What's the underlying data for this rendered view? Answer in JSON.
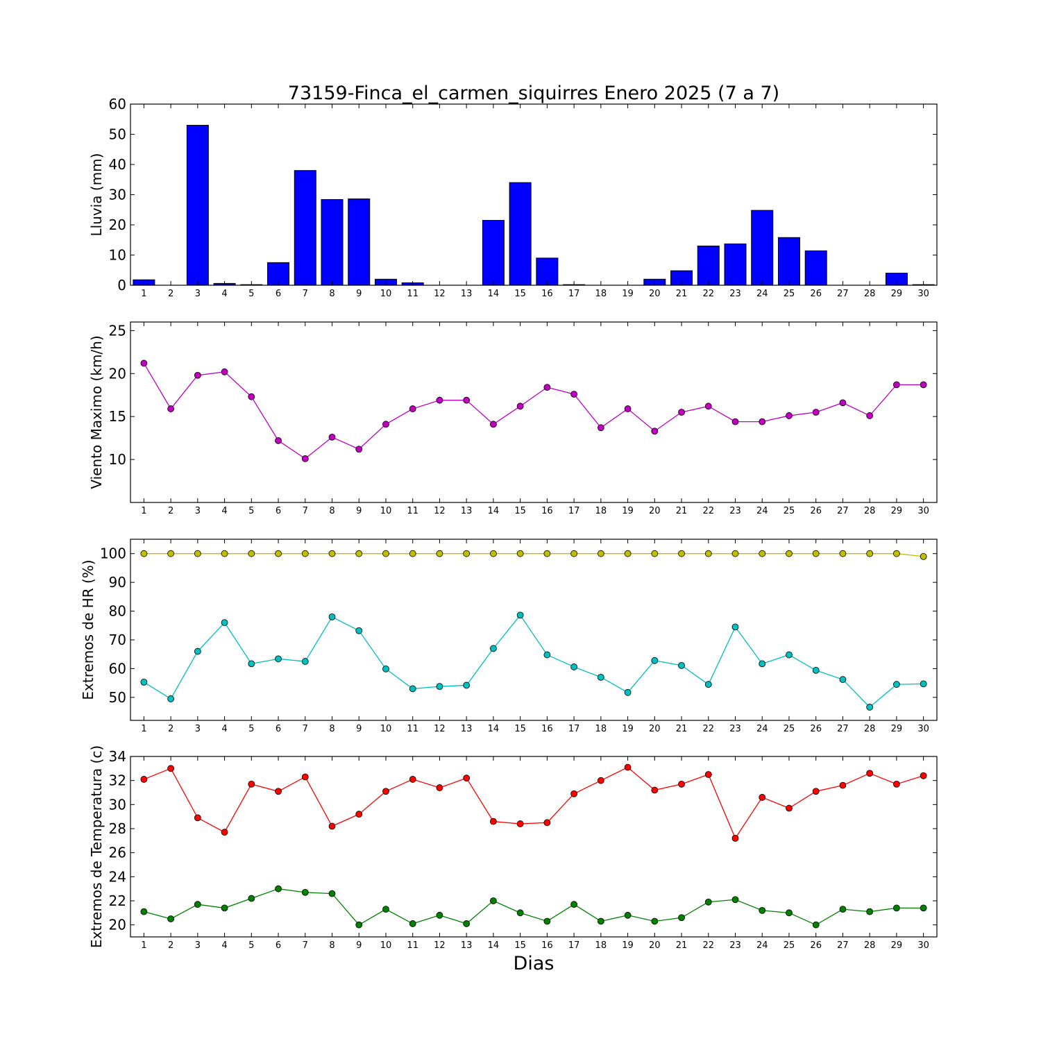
{
  "chart_data": {
    "title": "73159-Finca_el_carmen_siquirres Enero 2025  (7 a 7)",
    "xlabel": "Dias",
    "days": [
      1,
      2,
      3,
      4,
      5,
      6,
      7,
      8,
      9,
      10,
      11,
      12,
      13,
      14,
      15,
      16,
      17,
      18,
      19,
      20,
      21,
      22,
      23,
      24,
      25,
      26,
      27,
      28,
      29,
      30
    ],
    "panels": [
      {
        "type": "bar",
        "ylabel": "Lluvia (mm)",
        "ylim": [
          0,
          60
        ],
        "yticks": [
          0,
          10,
          20,
          30,
          40,
          50,
          60
        ],
        "series": [
          {
            "color": "#0000ff",
            "values": [
              1.8,
              0,
              53,
              0.6,
              0.2,
              7.5,
              38,
              28.4,
              28.6,
              2,
              0.8,
              0,
              0,
              21.5,
              34,
              9,
              0.2,
              0,
              0,
              2,
              4.8,
              13,
              13.7,
              24.8,
              15.8,
              11.4,
              0,
              0,
              4,
              0.2
            ]
          }
        ]
      },
      {
        "type": "line",
        "ylabel": "Viento Maximo (km/h)",
        "ylim": [
          5,
          26
        ],
        "yticks": [
          10,
          15,
          20,
          25
        ],
        "series": [
          {
            "color": "#bf00bf",
            "values": [
              21.2,
              15.9,
              19.8,
              20.2,
              17.3,
              12.2,
              10.1,
              12.6,
              11.2,
              14.1,
              15.9,
              16.9,
              16.9,
              14.1,
              16.2,
              18.4,
              17.6,
              13.7,
              15.9,
              13.3,
              15.5,
              16.2,
              14.4,
              14.4,
              15.1,
              15.5,
              16.6,
              15.1,
              18.7,
              18.7
            ]
          }
        ]
      },
      {
        "type": "line",
        "ylabel": "Extremos de HR (%)",
        "ylim": [
          42,
          105
        ],
        "yticks": [
          50,
          60,
          70,
          80,
          90,
          100
        ],
        "series": [
          {
            "color": "#bfbf00",
            "values": [
              100,
              100,
              100,
              100,
              100,
              100,
              100,
              100,
              100,
              100,
              100,
              100,
              100,
              100,
              100,
              100,
              100,
              100,
              100,
              100,
              100,
              100,
              100,
              100,
              100,
              100,
              100,
              100,
              100,
              99
            ]
          },
          {
            "color": "#00bfbf",
            "values": [
              55.3,
              49.5,
              66,
              76,
              61.7,
              63.4,
              62.5,
              78,
              73.2,
              59.9,
              53,
              53.8,
              54.2,
              67,
              78.6,
              64.8,
              60.6,
              57,
              51.7,
              62.8,
              61.1,
              54.5,
              74.5,
              61.7,
              64.8,
              59.4,
              56.2,
              46.6,
              54.5,
              54.7
            ]
          }
        ]
      },
      {
        "type": "line",
        "ylabel": "Extremos de Temperatura (c)",
        "ylim": [
          19,
          34
        ],
        "yticks": [
          20,
          22,
          24,
          26,
          28,
          30,
          32,
          34
        ],
        "series": [
          {
            "color": "#ff0000",
            "values": [
              32.1,
              33,
              28.9,
              27.7,
              31.7,
              31.1,
              32.3,
              28.2,
              29.2,
              31.1,
              32.1,
              31.4,
              32.2,
              28.6,
              28.4,
              28.5,
              30.9,
              32,
              33.1,
              31.2,
              31.7,
              32.5,
              27.2,
              30.6,
              29.7,
              31.1,
              31.6,
              32.6,
              31.7,
              32.4
            ]
          },
          {
            "color": "#008000",
            "values": [
              21.1,
              20.5,
              21.7,
              21.4,
              22.2,
              23,
              22.7,
              22.6,
              20,
              21.3,
              20.1,
              20.8,
              20.1,
              22,
              21,
              20.3,
              21.7,
              20.3,
              20.8,
              20.3,
              20.6,
              21.9,
              22.1,
              21.2,
              21,
              20,
              21.3,
              21.1,
              21.4,
              21.4
            ]
          }
        ]
      }
    ]
  }
}
